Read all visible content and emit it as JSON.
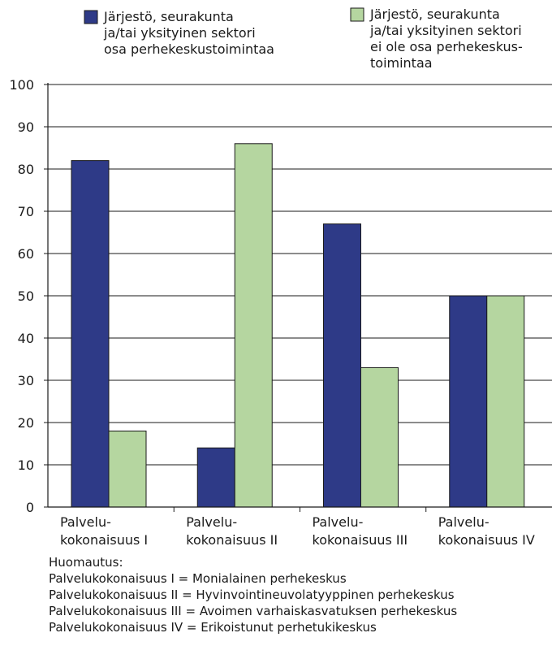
{
  "chart_data": {
    "type": "bar",
    "categories": [
      [
        "Palvelu-",
        "kokonaisuus I"
      ],
      [
        "Palvelu-",
        "kokonaisuus II"
      ],
      [
        "Palvelu-",
        "kokonaisuus III"
      ],
      [
        "Palvelu-",
        "kokonaisuus IV"
      ]
    ],
    "series": [
      {
        "name": [
          "Järjestö, seurakunta",
          "ja/tai yksityinen sektori",
          "osa perhekeskustoimintaa"
        ],
        "color": "#2e3a87",
        "values": [
          82,
          14,
          67,
          50
        ]
      },
      {
        "name": [
          "Järjestö, seurakunta",
          "ja/tai yksityinen sektori",
          "ei ole osa perhekeskus-",
          "toimintaa"
        ],
        "color": "#b5d6a0",
        "values": [
          18,
          86,
          33,
          50
        ]
      }
    ],
    "ylim": [
      0,
      100
    ],
    "yticks": [
      0,
      10,
      20,
      30,
      40,
      50,
      60,
      70,
      80,
      90,
      100
    ],
    "grid": true,
    "legend": "top"
  },
  "notes": {
    "heading": "Huomautus:",
    "lines": [
      "Palvelukokonaisuus I = Monialainen perhekeskus",
      "Palvelukokonaisuus II = Hyvinvointineuvolatyyppinen perhekeskus",
      "Palvelukokonaisuus III = Avoimen varhaiskasvatuksen perhekeskus",
      "Palvelukokonaisuus IV = Erikoistunut perhetukikeskus"
    ]
  }
}
